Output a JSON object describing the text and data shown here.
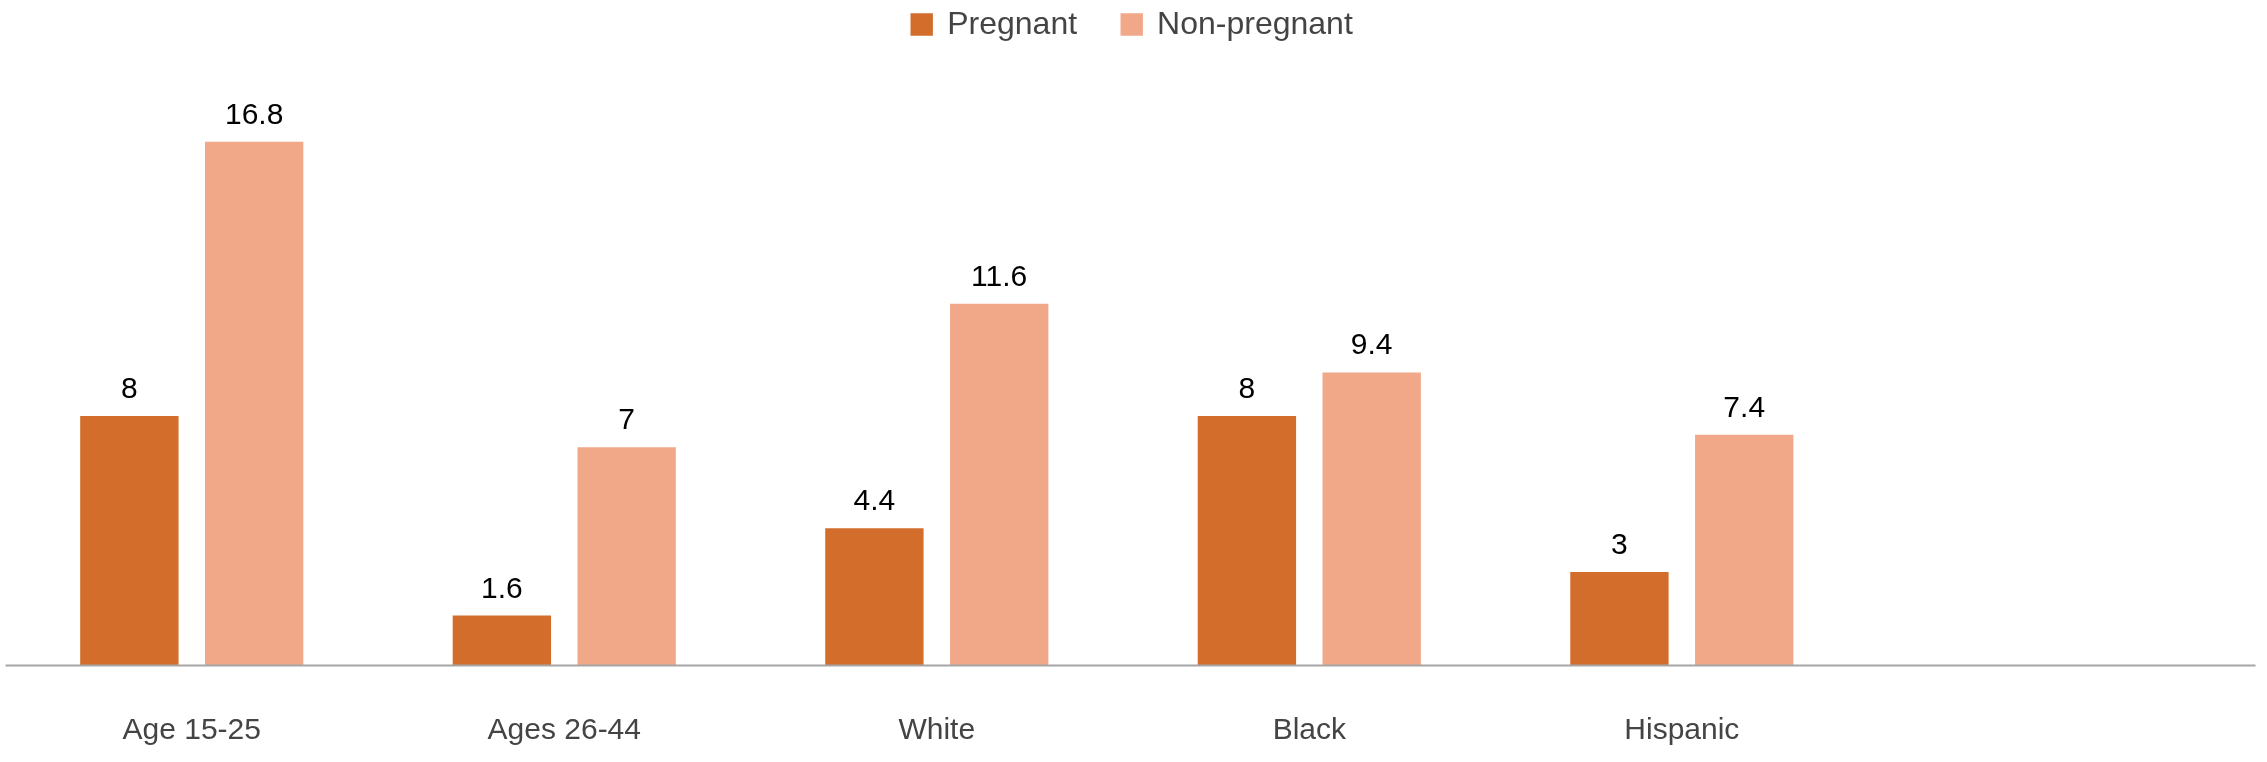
{
  "chart_data": {
    "type": "bar",
    "categories": [
      "Age 15-25",
      "Ages 26-44",
      "White",
      "Black",
      "Hispanic"
    ],
    "series": [
      {
        "name": "Pregnant",
        "color": "#d36d2b",
        "values": [
          8,
          1.6,
          4.4,
          8,
          3
        ]
      },
      {
        "name": "Non-pregnant",
        "color": "#f0a889",
        "values": [
          16.8,
          7,
          11.6,
          9.4,
          7.4
        ]
      }
    ],
    "data_labels": true,
    "legend": "top",
    "grid": false
  }
}
